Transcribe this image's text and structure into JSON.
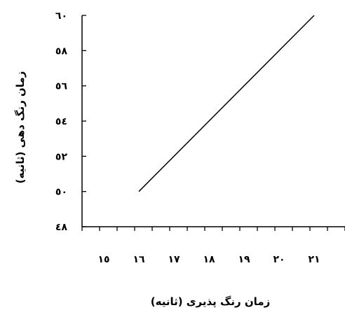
{
  "chart_data": {
    "type": "line",
    "xlabel": "زمان رنگ پذیری (ثانیه)",
    "ylabel": "زمان رنگ دهی (ثانیه)",
    "x_tick_labels": [
      "١٥",
      "١٦",
      "١٧",
      "١٨",
      "١٩",
      "٢٠",
      "٢١"
    ],
    "x_ticks": [
      15,
      16,
      17,
      18,
      19,
      20,
      21
    ],
    "y_tick_labels": [
      "٤٨",
      "٥٠",
      "٥٢",
      "٥٤",
      "٥٦",
      "٥٨",
      "٦٠"
    ],
    "y_ticks": [
      48,
      50,
      52,
      54,
      56,
      58,
      60
    ],
    "xlim": [
      15,
      21
    ],
    "ylim": [
      48,
      60
    ],
    "grid": false,
    "series": [
      {
        "x": [
          16,
          21
        ],
        "y": [
          50,
          60
        ]
      }
    ]
  }
}
